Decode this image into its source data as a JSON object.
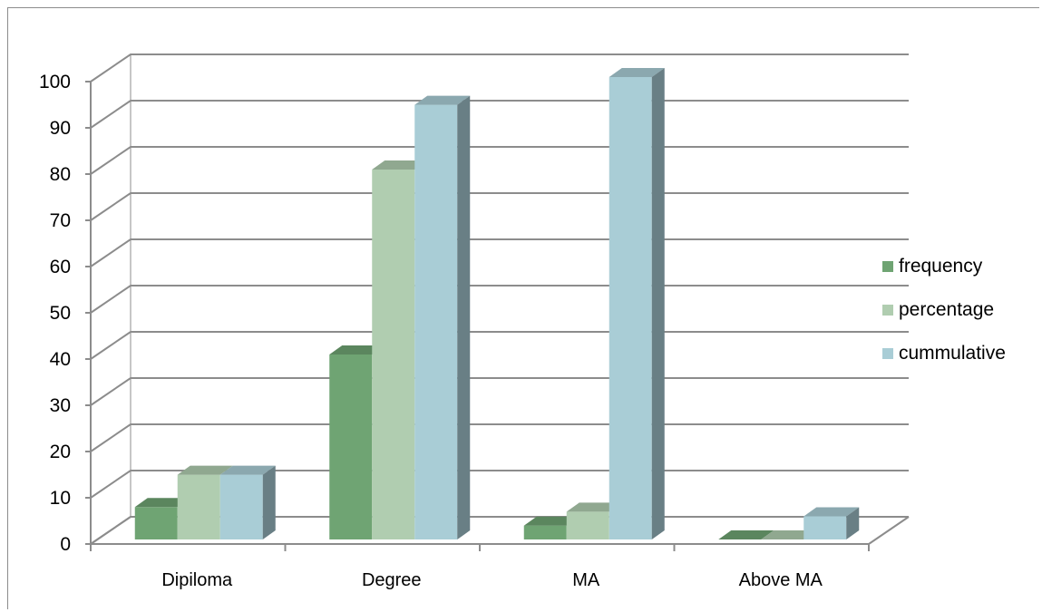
{
  "chart_data": {
    "type": "bar",
    "title": "",
    "xlabel": "",
    "ylabel": "",
    "categories": [
      "Dipiloma",
      "Degree",
      "MA",
      "Above MA"
    ],
    "series": [
      {
        "name": "frequency",
        "color": "#6fa473",
        "values": [
          7,
          40,
          3,
          0
        ]
      },
      {
        "name": "percentage",
        "color": "#b0cdb0",
        "values": [
          14,
          80,
          6,
          0
        ]
      },
      {
        "name": "cummulative",
        "color": "#a9cdd6",
        "values": [
          14,
          94,
          100,
          5
        ]
      }
    ],
    "ylim": [
      0,
      100
    ],
    "yticks": [
      "0",
      "10",
      "20",
      "30",
      "40",
      "50",
      "60",
      "70",
      "80",
      "90",
      "100"
    ],
    "grid": true,
    "legend_position": "right",
    "style": "3d-clustered-column"
  }
}
